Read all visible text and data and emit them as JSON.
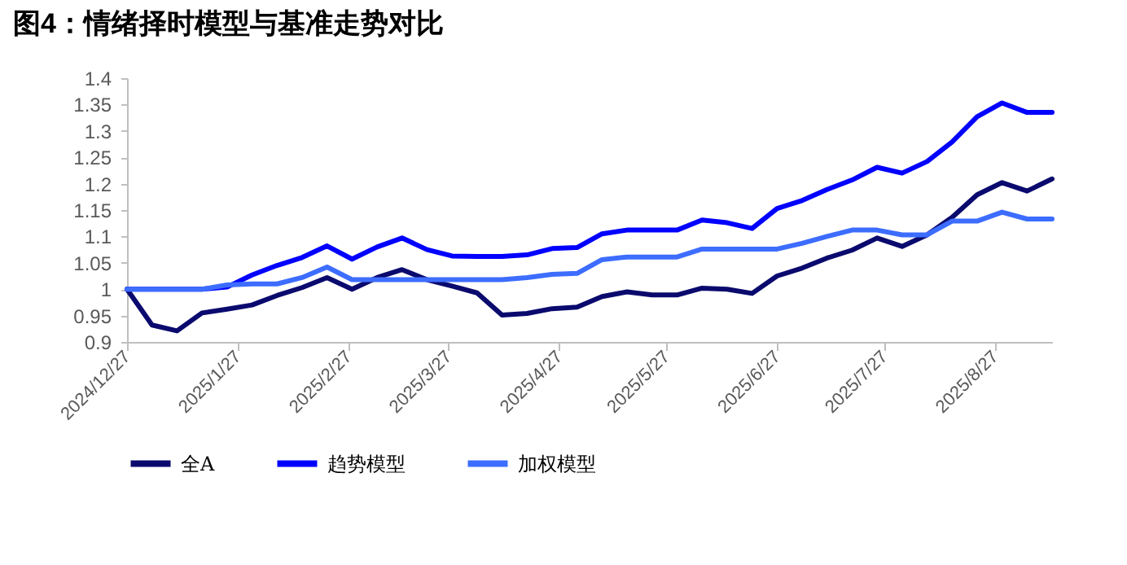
{
  "chart_data": {
    "type": "line",
    "title": "图4：情绪择时模型与基准走势对比",
    "x": [
      "2024-12-27",
      "2025-01-03",
      "2025-01-10",
      "2025-01-17",
      "2025-01-24",
      "2025-01-31",
      "2025-02-07",
      "2025-02-14",
      "2025-02-21",
      "2025-02-28",
      "2025-03-07",
      "2025-03-14",
      "2025-03-21",
      "2025-03-28",
      "2025-04-04",
      "2025-04-11",
      "2025-04-18",
      "2025-04-25",
      "2025-05-02",
      "2025-05-09",
      "2025-05-16",
      "2025-05-23",
      "2025-05-30",
      "2025-06-06",
      "2025-06-13",
      "2025-06-20",
      "2025-06-27",
      "2025-07-04",
      "2025-07-11",
      "2025-07-18",
      "2025-07-25",
      "2025-08-01",
      "2025-08-08",
      "2025-08-15",
      "2025-08-22",
      "2025-08-29",
      "2025-09-05",
      "2025-09-12"
    ],
    "series": [
      {
        "name": "全A",
        "color": "#0a0a6e",
        "values": [
          1.0,
          0.932,
          0.921,
          0.955,
          0.962,
          0.97,
          0.988,
          1.003,
          1.022,
          1.0,
          1.022,
          1.037,
          1.018,
          1.006,
          0.993,
          0.951,
          0.954,
          0.963,
          0.966,
          0.986,
          0.995,
          0.989,
          0.989,
          1.002,
          1.0,
          0.992,
          1.025,
          1.04,
          1.059,
          1.074,
          1.097,
          1.081,
          1.103,
          1.136,
          1.179,
          1.202,
          1.186,
          1.209
        ]
      },
      {
        "name": "趋势模型",
        "color": "#0000ff",
        "values": [
          1.0,
          1.0,
          1.0,
          1.0,
          1.004,
          1.027,
          1.045,
          1.06,
          1.082,
          1.057,
          1.08,
          1.097,
          1.075,
          1.063,
          1.062,
          1.062,
          1.065,
          1.077,
          1.079,
          1.105,
          1.112,
          1.112,
          1.112,
          1.131,
          1.126,
          1.115,
          1.153,
          1.168,
          1.189,
          1.207,
          1.231,
          1.22,
          1.242,
          1.279,
          1.327,
          1.353,
          1.335,
          1.335
        ]
      },
      {
        "name": "加权模型",
        "color": "#3d6dff",
        "values": [
          1.0,
          1.0,
          1.0,
          1.0,
          1.008,
          1.01,
          1.01,
          1.022,
          1.042,
          1.018,
          1.018,
          1.018,
          1.018,
          1.018,
          1.018,
          1.018,
          1.022,
          1.028,
          1.03,
          1.056,
          1.061,
          1.061,
          1.061,
          1.076,
          1.076,
          1.076,
          1.076,
          1.087,
          1.1,
          1.112,
          1.112,
          1.103,
          1.103,
          1.129,
          1.129,
          1.146,
          1.133,
          1.133
        ]
      }
    ],
    "xlim": [
      "2024-12-27",
      "2025-09-12"
    ],
    "xticks": [
      {
        "value": "2024-12-27",
        "label": "2024/12/27"
      },
      {
        "value": "2025-01-27",
        "label": "2025/1/27"
      },
      {
        "value": "2025-02-27",
        "label": "2025/2/27"
      },
      {
        "value": "2025-03-27",
        "label": "2025/3/27"
      },
      {
        "value": "2025-04-27",
        "label": "2025/4/27"
      },
      {
        "value": "2025-05-27",
        "label": "2025/5/27"
      },
      {
        "value": "2025-06-27",
        "label": "2025/6/27"
      },
      {
        "value": "2025-07-27",
        "label": "2025/7/27"
      },
      {
        "value": "2025-08-27",
        "label": "2025/8/27"
      }
    ],
    "ylim": [
      0.9,
      1.4
    ],
    "yticks": [
      0.9,
      0.95,
      1,
      1.05,
      1.1,
      1.15,
      1.2,
      1.25,
      1.3,
      1.35,
      1.4
    ],
    "grid": false,
    "legend": "bottom",
    "marker": "none",
    "line_style": "solid"
  }
}
